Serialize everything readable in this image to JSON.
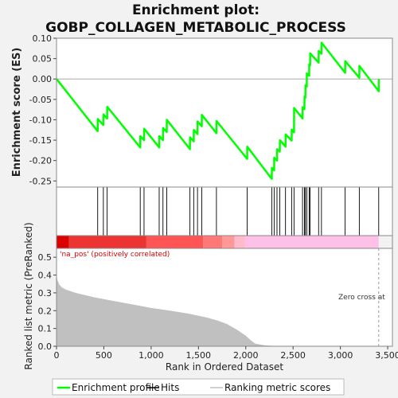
{
  "chart_data": {
    "type": "line",
    "title_line1": "Enrichment plot:",
    "title_line2": "GOBP_COLLAGEN_METABOLIC_PROCESS",
    "es_panel": {
      "ylabel": "Enrichment score (ES)",
      "ylim": [
        -0.265,
        0.1
      ],
      "yticks": [
        0.1,
        0.05,
        0.0,
        -0.05,
        -0.1,
        -0.15,
        -0.2,
        -0.25
      ],
      "ytick_labels": [
        "0.10",
        "0.05",
        "0.00",
        "-0.05",
        "-0.10",
        "-0.15",
        "-0.20",
        "-0.25"
      ],
      "line_color": "#00ff00",
      "profile": [
        [
          0,
          0.0
        ],
        [
          435,
          -0.128
        ],
        [
          436,
          -0.098
        ],
        [
          495,
          -0.113
        ],
        [
          496,
          -0.087
        ],
        [
          535,
          -0.097
        ],
        [
          536,
          -0.068
        ],
        [
          885,
          -0.168
        ],
        [
          886,
          -0.14
        ],
        [
          925,
          -0.15
        ],
        [
          926,
          -0.122
        ],
        [
          1085,
          -0.168
        ],
        [
          1086,
          -0.14
        ],
        [
          1125,
          -0.15
        ],
        [
          1126,
          -0.12
        ],
        [
          1165,
          -0.13
        ],
        [
          1166,
          -0.1
        ],
        [
          1410,
          -0.172
        ],
        [
          1411,
          -0.143
        ],
        [
          1450,
          -0.153
        ],
        [
          1451,
          -0.125
        ],
        [
          1490,
          -0.135
        ],
        [
          1491,
          -0.104
        ],
        [
          1535,
          -0.116
        ],
        [
          1536,
          -0.088
        ],
        [
          1690,
          -0.133
        ],
        [
          1691,
          -0.103
        ],
        [
          2015,
          -0.196
        ],
        [
          2016,
          -0.166
        ],
        [
          2275,
          -0.245
        ],
        [
          2276,
          -0.218
        ],
        [
          2300,
          -0.224
        ],
        [
          2301,
          -0.193
        ],
        [
          2330,
          -0.2
        ],
        [
          2331,
          -0.172
        ],
        [
          2360,
          -0.178
        ],
        [
          2361,
          -0.15
        ],
        [
          2420,
          -0.166
        ],
        [
          2421,
          -0.136
        ],
        [
          2485,
          -0.151
        ],
        [
          2486,
          -0.124
        ],
        [
          2510,
          -0.131
        ],
        [
          2511,
          -0.071
        ],
        [
          2600,
          -0.097
        ],
        [
          2601,
          -0.069
        ],
        [
          2620,
          -0.074
        ],
        [
          2621,
          -0.043
        ],
        [
          2630,
          -0.046
        ],
        [
          2631,
          -0.015
        ],
        [
          2645,
          -0.019
        ],
        [
          2646,
          0.014
        ],
        [
          2670,
          0.008
        ],
        [
          2671,
          0.036
        ],
        [
          2680,
          0.033
        ],
        [
          2681,
          0.063
        ],
        [
          2770,
          0.04
        ],
        [
          2771,
          0.069
        ],
        [
          2800,
          0.062
        ],
        [
          2801,
          0.089
        ],
        [
          3050,
          0.015
        ],
        [
          3051,
          0.044
        ],
        [
          3200,
          0.003
        ],
        [
          3201,
          0.032
        ],
        [
          3405,
          -0.03
        ],
        [
          3406,
          0.0
        ]
      ]
    },
    "hits": [
      435,
      495,
      535,
      885,
      925,
      1085,
      1125,
      1165,
      1410,
      1450,
      1490,
      1535,
      1690,
      2015,
      2275,
      2300,
      2330,
      2360,
      2420,
      2485,
      2510,
      2600,
      2620,
      2630,
      2645,
      2670,
      2680,
      2770,
      2800,
      3050,
      3200,
      3405
    ],
    "heatmap": {
      "x_end": 3405,
      "segments": [
        {
          "x0": 0,
          "x1": 130,
          "color": "#dd0000"
        },
        {
          "x0": 130,
          "x1": 950,
          "color": "#ee3333"
        },
        {
          "x0": 950,
          "x1": 1550,
          "color": "#ff5555"
        },
        {
          "x0": 1550,
          "x1": 1750,
          "color": "#ff7777"
        },
        {
          "x0": 1750,
          "x1": 1880,
          "color": "#ff9999"
        },
        {
          "x0": 1880,
          "x1": 1990,
          "color": "#ffbbcc"
        },
        {
          "x0": 1990,
          "x1": 3405,
          "color": "#ffc0e8"
        }
      ]
    },
    "metric_panel": {
      "ylabel": "Ranked list metric (PreRanked)",
      "xlabel": "Rank in Ordered Dataset",
      "ylim": [
        0,
        0.55
      ],
      "yticks": [
        0.0,
        0.1,
        0.2,
        0.3,
        0.4,
        0.5
      ],
      "ytick_labels": [
        "0.0",
        "0.1",
        "0.2",
        "0.3",
        "0.4",
        "0.5"
      ],
      "fill_color": "#c0c0c0",
      "curve": [
        [
          0,
          0.4
        ],
        [
          10,
          0.37
        ],
        [
          30,
          0.345
        ],
        [
          60,
          0.33
        ],
        [
          100,
          0.318
        ],
        [
          200,
          0.3
        ],
        [
          400,
          0.275
        ],
        [
          600,
          0.255
        ],
        [
          800,
          0.235
        ],
        [
          1000,
          0.215
        ],
        [
          1200,
          0.2
        ],
        [
          1400,
          0.183
        ],
        [
          1600,
          0.16
        ],
        [
          1700,
          0.145
        ],
        [
          1800,
          0.125
        ],
        [
          1900,
          0.095
        ],
        [
          2000,
          0.06
        ],
        [
          2050,
          0.035
        ],
        [
          2100,
          0.015
        ],
        [
          2200,
          0.005
        ],
        [
          2300,
          0.002
        ],
        [
          2500,
          0.001
        ],
        [
          3405,
          0.0
        ]
      ],
      "annotation_positive": "'na_pos' (positively correlated)",
      "annotation_positive_color": "#dd0000",
      "annotation_zero": "Zero cross at",
      "zero_cross_x": 3405
    },
    "xlim": [
      0,
      3550
    ],
    "xticks": [
      0,
      500,
      1000,
      1500,
      2000,
      2500,
      3000,
      3500
    ],
    "xtick_labels": [
      "0",
      "500",
      "1,000",
      "1,500",
      "2,000",
      "2,500",
      "3,000",
      "3,500"
    ],
    "legend": [
      {
        "label": "Enrichment profile",
        "color": "#00ff00",
        "kind": "line"
      },
      {
        "label": "Hits",
        "color": "#000000",
        "kind": "line"
      },
      {
        "label": "Ranking metric scores",
        "color": "#c0c0c0",
        "kind": "line"
      }
    ]
  }
}
